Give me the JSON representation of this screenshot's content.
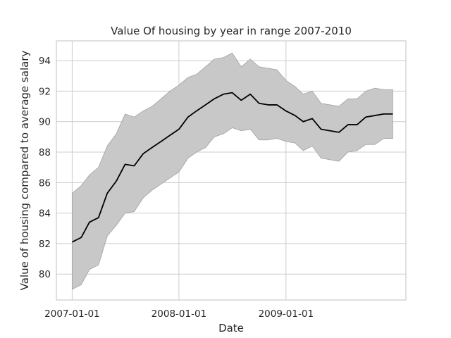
{
  "chart_data": {
    "type": "area",
    "title": "Value Of housing by year in range 2007-2010",
    "xlabel": "Date",
    "ylabel": "Value of housing compared to average salary",
    "x_tick_labels": [
      "2007-01-01",
      "2008-01-01",
      "2009-01-01"
    ],
    "y_tick_labels": [
      "80",
      "82",
      "84",
      "86",
      "88",
      "90",
      "92",
      "94"
    ],
    "y_ticks": [
      80,
      82,
      84,
      86,
      88,
      90,
      92,
      94
    ],
    "ylim": [
      78.3,
      95.3
    ],
    "xlim": [
      "2006-11-08",
      "2010-02-15"
    ],
    "grid": true,
    "legend": "none",
    "colors": {
      "line": "#000000",
      "band": "#c8c8c8",
      "band_edge": "#a0a0a0",
      "grid": "#cccccc"
    },
    "x": [
      "2007-01-01",
      "2007-02-01",
      "2007-03-01",
      "2007-04-01",
      "2007-05-01",
      "2007-06-01",
      "2007-07-01",
      "2007-08-01",
      "2007-09-01",
      "2007-10-01",
      "2007-11-01",
      "2007-12-01",
      "2008-01-01",
      "2008-02-01",
      "2008-03-01",
      "2008-04-01",
      "2008-05-01",
      "2008-06-01",
      "2008-07-01",
      "2008-08-01",
      "2008-09-01",
      "2008-10-01",
      "2008-11-01",
      "2008-12-01",
      "2009-01-01",
      "2009-02-01",
      "2009-03-01",
      "2009-04-01",
      "2009-05-01",
      "2009-06-01",
      "2009-07-01",
      "2009-08-01",
      "2009-09-01",
      "2009-10-01",
      "2009-11-01",
      "2009-12-01",
      "2010-01-01"
    ],
    "series": [
      {
        "role": "mean",
        "values": [
          82.1,
          82.4,
          83.4,
          83.7,
          85.3,
          86.1,
          87.2,
          87.1,
          87.9,
          88.3,
          88.7,
          89.1,
          89.5,
          90.3,
          90.7,
          91.1,
          91.5,
          91.8,
          91.9,
          91.4,
          91.8,
          91.2,
          91.1,
          91.1,
          90.7,
          90.4,
          90.0,
          90.2,
          89.5,
          89.4,
          89.3,
          89.8,
          89.8,
          90.3,
          90.4,
          90.5,
          90.5
        ]
      },
      {
        "role": "upper",
        "values": [
          85.3,
          85.8,
          86.5,
          87.0,
          88.4,
          89.2,
          90.5,
          90.3,
          90.7,
          91.0,
          91.5,
          92.0,
          92.4,
          92.9,
          93.1,
          93.6,
          94.1,
          94.2,
          94.5,
          93.6,
          94.1,
          93.6,
          93.5,
          93.4,
          92.7,
          92.3,
          91.8,
          92.0,
          91.2,
          91.1,
          91.0,
          91.5,
          91.5,
          92.0,
          92.2,
          92.1,
          92.1
        ]
      },
      {
        "role": "lower",
        "values": [
          79.0,
          79.3,
          80.3,
          80.6,
          82.5,
          83.2,
          84.0,
          84.1,
          85.0,
          85.5,
          85.9,
          86.3,
          86.7,
          87.6,
          88.0,
          88.3,
          89.0,
          89.2,
          89.6,
          89.4,
          89.5,
          88.8,
          88.8,
          88.9,
          88.7,
          88.6,
          88.1,
          88.4,
          87.6,
          87.5,
          87.4,
          88.0,
          88.1,
          88.5,
          88.5,
          88.9,
          88.9
        ]
      }
    ]
  }
}
